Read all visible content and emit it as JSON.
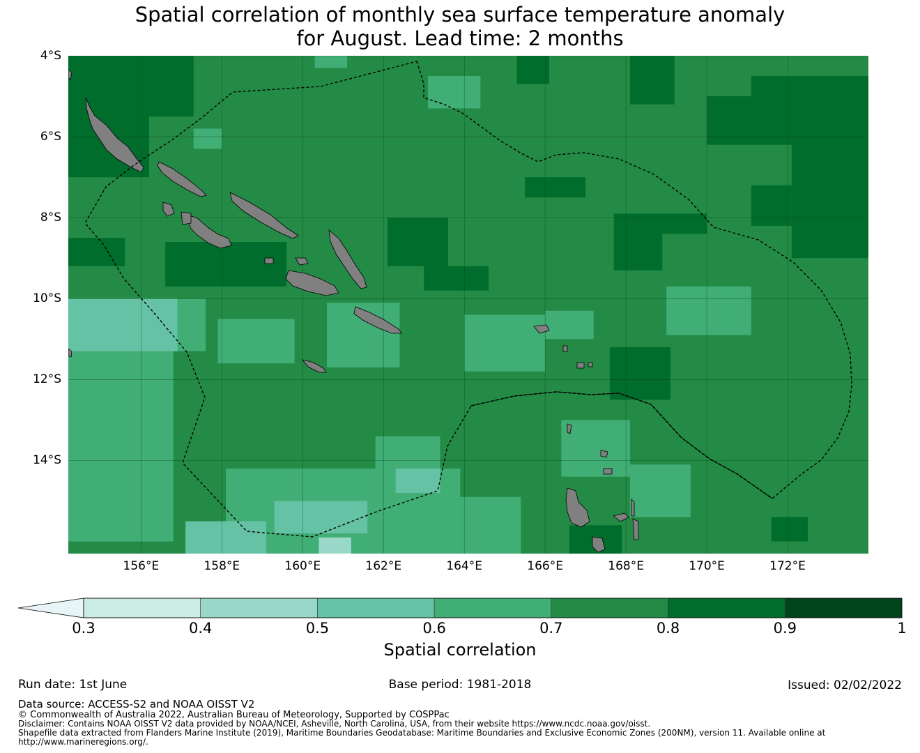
{
  "title": {
    "line1": "Spatial correlation of monthly sea surface temperature anomaly",
    "line2": "for August. Lead time: 2 months"
  },
  "map": {
    "lon_range": [
      154.2,
      174.0
    ],
    "lat_range": [
      -16.3,
      -4.0
    ],
    "lat_ticks": [
      {
        "value": -4,
        "label": "4°S"
      },
      {
        "value": -6,
        "label": "6°S"
      },
      {
        "value": -8,
        "label": "8°S"
      },
      {
        "value": -10,
        "label": "10°S"
      },
      {
        "value": -12,
        "label": "12°S"
      },
      {
        "value": -14,
        "label": "14°S"
      }
    ],
    "lon_ticks": [
      {
        "value": 156,
        "label": "156°E"
      },
      {
        "value": 158,
        "label": "158°E"
      },
      {
        "value": 160,
        "label": "160°E"
      },
      {
        "value": 162,
        "label": "162°E"
      },
      {
        "value": 164,
        "label": "164°E"
      },
      {
        "value": 166,
        "label": "166°E"
      },
      {
        "value": 168,
        "label": "168°E"
      },
      {
        "value": 170,
        "label": "170°E"
      },
      {
        "value": 172,
        "label": "172°E"
      }
    ],
    "background_class": "0.7-0.8",
    "correlation_patches": [
      {
        "class": "0.8-0.9",
        "lon": [
          154.2,
          157.3
        ],
        "lat": [
          -5.5,
          -4.0
        ]
      },
      {
        "class": "0.8-0.9",
        "lon": [
          154.2,
          156.2
        ],
        "lat": [
          -7.0,
          -5.5
        ]
      },
      {
        "class": "0.8-0.9",
        "lon": [
          154.2,
          155.6
        ],
        "lat": [
          -9.2,
          -8.5
        ]
      },
      {
        "class": "0.8-0.9",
        "lon": [
          156.6,
          159.6
        ],
        "lat": [
          -9.7,
          -8.6
        ]
      },
      {
        "class": "0.8-0.9",
        "lon": [
          162.1,
          163.6
        ],
        "lat": [
          -9.2,
          -8.0
        ]
      },
      {
        "class": "0.8-0.9",
        "lon": [
          163.0,
          164.6
        ],
        "lat": [
          -9.8,
          -9.2
        ]
      },
      {
        "class": "0.8-0.9",
        "lon": [
          167.7,
          168.9
        ],
        "lat": [
          -9.3,
          -7.9
        ]
      },
      {
        "class": "0.8-0.9",
        "lon": [
          168.9,
          170.0
        ],
        "lat": [
          -8.4,
          -7.9
        ]
      },
      {
        "class": "0.8-0.9",
        "lon": [
          170.0,
          174.0
        ],
        "lat": [
          -6.2,
          -5.0
        ]
      },
      {
        "class": "0.8-0.9",
        "lon": [
          171.1,
          174.0
        ],
        "lat": [
          -5.0,
          -4.5
        ]
      },
      {
        "class": "0.8-0.9",
        "lon": [
          172.1,
          174.0
        ],
        "lat": [
          -9.0,
          -6.2
        ]
      },
      {
        "class": "0.8-0.9",
        "lon": [
          171.1,
          172.1
        ],
        "lat": [
          -8.2,
          -7.2
        ]
      },
      {
        "class": "0.8-0.9",
        "lon": [
          168.1,
          169.2
        ],
        "lat": [
          -5.2,
          -4.0
        ]
      },
      {
        "class": "0.8-0.9",
        "lon": [
          165.3,
          166.1
        ],
        "lat": [
          -4.7,
          -4.0
        ]
      },
      {
        "class": "0.8-0.9",
        "lon": [
          165.5,
          167.0
        ],
        "lat": [
          -7.5,
          -7.0
        ]
      },
      {
        "class": "0.8-0.9",
        "lon": [
          167.6,
          169.1
        ],
        "lat": [
          -12.5,
          -11.2
        ]
      },
      {
        "class": "0.8-0.9",
        "lon": [
          171.6,
          172.5
        ],
        "lat": [
          -16.0,
          -15.4
        ]
      },
      {
        "class": "0.8-0.9",
        "lon": [
          166.6,
          167.9
        ],
        "lat": [
          -16.3,
          -15.6
        ]
      },
      {
        "class": "0.6-0.7",
        "lon": [
          154.2,
          157.6
        ],
        "lat": [
          -11.3,
          -10.0
        ]
      },
      {
        "class": "0.6-0.7",
        "lon": [
          154.2,
          156.8
        ],
        "lat": [
          -16.0,
          -11.3
        ]
      },
      {
        "class": "0.6-0.7",
        "lon": [
          157.9,
          159.8
        ],
        "lat": [
          -11.6,
          -10.5
        ]
      },
      {
        "class": "0.6-0.7",
        "lon": [
          160.6,
          162.4
        ],
        "lat": [
          -11.7,
          -10.1
        ]
      },
      {
        "class": "0.6-0.7",
        "lon": [
          164.0,
          166.0
        ],
        "lat": [
          -11.8,
          -10.4
        ]
      },
      {
        "class": "0.6-0.7",
        "lon": [
          166.0,
          167.2
        ],
        "lat": [
          -11.0,
          -10.3
        ]
      },
      {
        "class": "0.6-0.7",
        "lon": [
          169.0,
          171.1
        ],
        "lat": [
          -10.9,
          -9.7
        ]
      },
      {
        "class": "0.6-0.7",
        "lon": [
          158.1,
          163.9
        ],
        "lat": [
          -16.3,
          -14.2
        ]
      },
      {
        "class": "0.6-0.7",
        "lon": [
          161.8,
          163.4
        ],
        "lat": [
          -14.2,
          -13.4
        ]
      },
      {
        "class": "0.6-0.7",
        "lon": [
          163.9,
          165.4
        ],
        "lat": [
          -16.3,
          -14.9
        ]
      },
      {
        "class": "0.6-0.7",
        "lon": [
          166.4,
          168.1
        ],
        "lat": [
          -14.4,
          -13.0
        ]
      },
      {
        "class": "0.6-0.7",
        "lon": [
          168.1,
          169.6
        ],
        "lat": [
          -15.4,
          -14.1
        ]
      },
      {
        "class": "0.6-0.7",
        "lon": [
          163.1,
          164.4
        ],
        "lat": [
          -5.3,
          -4.5
        ]
      },
      {
        "class": "0.6-0.7",
        "lon": [
          160.3,
          161.1
        ],
        "lat": [
          -4.3,
          -4.0
        ]
      },
      {
        "class": "0.6-0.7",
        "lon": [
          157.3,
          158.0
        ],
        "lat": [
          -6.3,
          -5.8
        ]
      },
      {
        "class": "0.5-0.6",
        "lon": [
          154.2,
          156.9
        ],
        "lat": [
          -11.3,
          -10.0
        ]
      },
      {
        "class": "0.5-0.6",
        "lon": [
          157.1,
          159.1
        ],
        "lat": [
          -16.3,
          -15.5
        ]
      },
      {
        "class": "0.5-0.6",
        "lon": [
          159.3,
          161.6
        ],
        "lat": [
          -15.8,
          -15.0
        ]
      },
      {
        "class": "0.5-0.6",
        "lon": [
          162.3,
          163.4
        ],
        "lat": [
          -14.8,
          -14.2
        ]
      },
      {
        "class": "0.4-0.5",
        "lon": [
          160.4,
          161.2
        ],
        "lat": [
          -16.3,
          -15.9
        ]
      }
    ],
    "colors": {
      "land": "#808080",
      "grid": "#0b3f1c",
      "boundary": "#000000",
      "classes": {
        "<0.3": "#e8f5f7",
        "0.3-0.4": "#cbece4",
        "0.4-0.5": "#99d8c9",
        "0.5-0.6": "#66c2a4",
        "0.6-0.7": "#41ae76",
        "0.7-0.8": "#238b45",
        "0.8-0.9": "#006d2c",
        "0.9-1": "#00441b"
      }
    }
  },
  "colorbar": {
    "label": "Spatial correlation",
    "extend": "min",
    "ticks": [
      "0.3",
      "0.4",
      "0.5",
      "0.6",
      "0.7",
      "0.8",
      "0.9",
      "1"
    ],
    "levels": [
      0.3,
      0.4,
      0.5,
      0.6,
      0.7,
      0.8,
      0.9,
      1.0
    ],
    "segment_colors": [
      "#cbece4",
      "#99d8c9",
      "#66c2a4",
      "#41ae76",
      "#238b45",
      "#006d2c",
      "#00441b"
    ],
    "below_color": "#e8f5f7"
  },
  "meta": {
    "run_date": "Run date: 1st June",
    "base_period": "Base period: 1981-2018",
    "issued": "Issued: 02/02/2022"
  },
  "footer": {
    "data_source": "Data source: ACCESS-S2 and NOAA OISST V2",
    "copyright": "© Commonwealth of Australia 2022, Australian Bureau of Meteorology, Supported by COSPPac",
    "disclaimer": "Disclaimer: Contains NOAA OISST V2 data provided by NOAA/NCEI, Asheville, North Carolina, USA, from their website https://www.ncdc.noaa.gov/oisst.",
    "shapefile": "Shapefile data extracted from Flanders Marine Institute (2019), Maritime Boundaries Geodatabase: Maritime Boundaries and Exclusive Economic Zones (200NM), version 11. Available online at",
    "shapefile_url": "http://www.marineregions.org/."
  }
}
